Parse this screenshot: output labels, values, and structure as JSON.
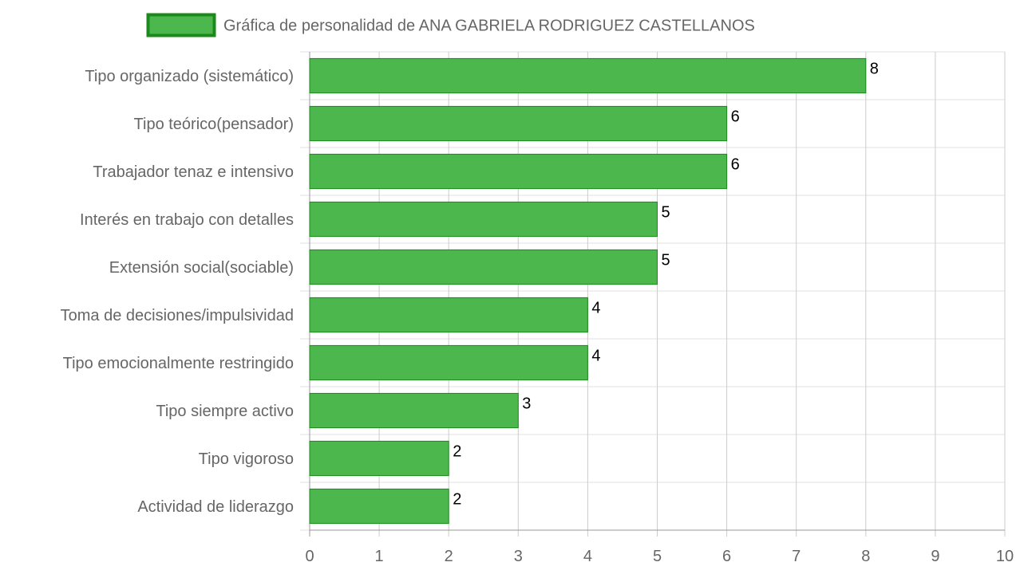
{
  "chart_data": {
    "type": "bar",
    "orientation": "horizontal",
    "categories": [
      "Tipo organizado (sistemático)",
      "Tipo teórico(pensador)",
      "Trabajador tenaz e intensivo",
      "Interés en trabajo con detalles",
      "Extensión social(sociable)",
      "Toma de decisiones/impulsividad",
      "Tipo emocionalmente restringido",
      "Tipo siempre activo",
      "Tipo vigoroso",
      "Actividad de liderazgo"
    ],
    "series": [
      {
        "name": "Gráfica de personalidad de ANA GABRIELA RODRIGUEZ CASTELLANOS",
        "values": [
          8,
          6,
          6,
          5,
          5,
          4,
          4,
          3,
          2,
          2
        ],
        "color": "#4cb74c",
        "border_color": "#1a8a1a"
      }
    ],
    "x_ticks": [
      "0",
      "1",
      "2",
      "3",
      "4",
      "5",
      "6",
      "7",
      "8",
      "9",
      "10"
    ],
    "xlim": [
      0,
      10
    ],
    "grid": true,
    "legend_position": "top",
    "data_labels": true
  }
}
